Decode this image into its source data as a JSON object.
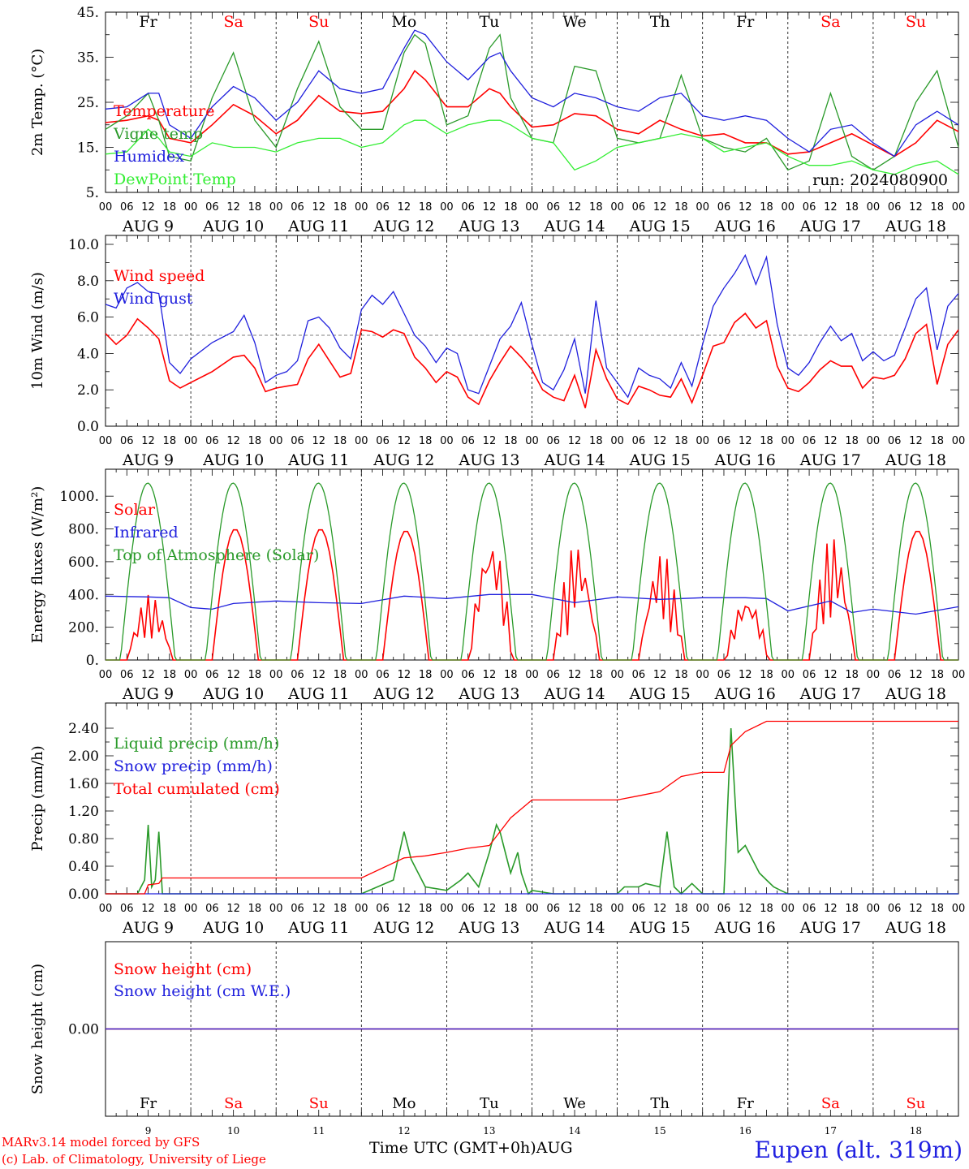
{
  "run_label": "run: 2024080900",
  "month": "AUG",
  "dates": [
    "9",
    "10",
    "11",
    "12",
    "13",
    "14",
    "15",
    "16",
    "17",
    "18"
  ],
  "days": [
    {
      "name": "Fr",
      "color": "#000000"
    },
    {
      "name": "Sa",
      "color": "#ff0000"
    },
    {
      "name": "Su",
      "color": "#ff0000"
    },
    {
      "name": "Mo",
      "color": "#000000"
    },
    {
      "name": "Tu",
      "color": "#000000"
    },
    {
      "name": "We",
      "color": "#000000"
    },
    {
      "name": "Th",
      "color": "#000000"
    },
    {
      "name": "Fr",
      "color": "#000000"
    },
    {
      "name": "Sa",
      "color": "#ff0000"
    },
    {
      "name": "Su",
      "color": "#ff0000"
    }
  ],
  "hour_ticks": [
    "00",
    "06",
    "12",
    "18"
  ],
  "footer": {
    "credit_line1": "MARv3.14 model forced by GFS",
    "credit_line2": "(c) Lab. of Climatology, University of Liege",
    "x_title": "Time UTC (GMT+0h)AUG",
    "station": "Eupen (alt. 319m)"
  },
  "chart_data": [
    {
      "type": "line",
      "ylabel": "2m Temp. (°C)",
      "ylim": [
        5,
        45
      ],
      "yticks": [
        "5.",
        "15.",
        "25.",
        "35.",
        "45."
      ],
      "yticks_values": [
        5,
        15,
        25,
        35,
        45
      ],
      "x_unit": "hours since Aug 9 00 UTC",
      "series": [
        {
          "name": "Temperature",
          "color": "#ff0000",
          "x": [
            0,
            6,
            12,
            15,
            18,
            24,
            30,
            36,
            42,
            48,
            54,
            60,
            66,
            72,
            78,
            84,
            87,
            90,
            96,
            102,
            108,
            111,
            114,
            120,
            126,
            132,
            138,
            144,
            150,
            156,
            162,
            168,
            174,
            180,
            186,
            192,
            198,
            204,
            210,
            216,
            222,
            228,
            234,
            240
          ],
          "y": [
            20.5,
            21,
            22,
            21,
            17,
            16,
            20,
            24.5,
            22,
            18,
            21,
            26.5,
            23,
            22.5,
            23,
            28,
            32,
            30,
            24,
            24,
            28,
            27,
            24,
            19.5,
            20,
            22.5,
            22,
            19,
            18,
            21,
            19,
            17.5,
            18,
            16,
            16,
            13.5,
            14,
            16,
            18,
            15.5,
            13,
            16,
            21,
            18.5
          ]
        },
        {
          "name": "Vigne temp",
          "color": "#2a9a2a",
          "x": [
            0,
            6,
            12,
            15,
            18,
            24,
            30,
            36,
            42,
            48,
            54,
            60,
            66,
            72,
            78,
            84,
            87,
            90,
            96,
            102,
            108,
            111,
            114,
            120,
            126,
            132,
            138,
            144,
            150,
            156,
            162,
            168,
            174,
            180,
            186,
            192,
            198,
            204,
            210,
            216,
            222,
            228,
            234,
            240
          ],
          "y": [
            19,
            22,
            27,
            21,
            13,
            12,
            26,
            36,
            21,
            15,
            28,
            38.5,
            24,
            19,
            19,
            36,
            40,
            38,
            20,
            22,
            37,
            40,
            26,
            17,
            16,
            33,
            32,
            17,
            16,
            17,
            31,
            17,
            15,
            14,
            17,
            10,
            12,
            27,
            13,
            10,
            13,
            25,
            32,
            15
          ]
        },
        {
          "name": "Humidex",
          "color": "#2020dd",
          "x": [
            0,
            6,
            12,
            15,
            18,
            24,
            30,
            36,
            42,
            48,
            54,
            60,
            66,
            72,
            78,
            84,
            87,
            90,
            96,
            102,
            108,
            111,
            114,
            120,
            126,
            132,
            138,
            144,
            150,
            156,
            162,
            168,
            174,
            180,
            186,
            192,
            198,
            204,
            210,
            216,
            222,
            228,
            234,
            240
          ],
          "y": [
            23.5,
            24,
            27,
            27,
            20,
            17,
            24,
            28.5,
            26,
            21,
            25,
            32,
            28,
            27,
            28,
            37,
            41,
            40,
            34,
            30,
            35,
            36,
            32,
            26,
            24,
            27,
            26,
            24,
            23,
            26,
            27,
            22,
            21,
            22,
            21,
            17,
            14,
            19,
            20,
            16,
            13,
            20,
            23,
            20
          ]
        },
        {
          "name": "DewPoint Temp",
          "color": "#33ee33",
          "x": [
            0,
            6,
            12,
            15,
            18,
            24,
            30,
            36,
            42,
            48,
            54,
            60,
            66,
            72,
            78,
            84,
            87,
            90,
            96,
            102,
            108,
            111,
            114,
            120,
            126,
            132,
            138,
            144,
            150,
            156,
            162,
            168,
            174,
            180,
            186,
            192,
            198,
            204,
            210,
            216,
            222,
            228,
            234,
            240
          ],
          "y": [
            13.5,
            14,
            19,
            17,
            14,
            13,
            16,
            15,
            15,
            14,
            16,
            17,
            17,
            15,
            16,
            20,
            21,
            21,
            18,
            20,
            21,
            21,
            20,
            17,
            16,
            10,
            12,
            15,
            16,
            17,
            18,
            17,
            14,
            15,
            16,
            13,
            11,
            11,
            12,
            10,
            9,
            11,
            12,
            9
          ]
        }
      ]
    },
    {
      "type": "line",
      "ylabel": "10m Wind (m/s)",
      "ylim": [
        0,
        10
      ],
      "yticks": [
        "0.0",
        "2.0",
        "4.0",
        "6.0",
        "8.0",
        "10.0"
      ],
      "yticks_values": [
        0,
        2,
        4,
        6,
        8,
        10
      ],
      "reference_line": 5,
      "x_unit": "hours since Aug 9 00 UTC",
      "series": [
        {
          "name": "Wind speed",
          "color": "#ff0000",
          "x": [
            0,
            3,
            6,
            9,
            12,
            15,
            18,
            21,
            24,
            30,
            36,
            39,
            42,
            45,
            48,
            51,
            54,
            57,
            60,
            63,
            66,
            69,
            72,
            75,
            78,
            81,
            84,
            87,
            90,
            93,
            96,
            99,
            102,
            105,
            108,
            111,
            114,
            117,
            120,
            123,
            126,
            129,
            132,
            135,
            138,
            141,
            144,
            147,
            150,
            153,
            156,
            159,
            162,
            165,
            168,
            171,
            174,
            177,
            180,
            183,
            186,
            189,
            192,
            195,
            198,
            201,
            204,
            207,
            210,
            213,
            216,
            219,
            222,
            225,
            228,
            231,
            234,
            237,
            240
          ],
          "y": [
            5.1,
            4.5,
            5,
            5.9,
            5.4,
            4.8,
            2.5,
            2.1,
            2.4,
            3,
            3.8,
            3.9,
            3.2,
            1.9,
            2.1,
            2.2,
            2.3,
            3.7,
            4.5,
            3.6,
            2.7,
            2.9,
            5.3,
            5.2,
            4.9,
            5.3,
            5.1,
            3.8,
            3.2,
            2.4,
            3,
            2.7,
            1.6,
            1.2,
            2.5,
            3.5,
            4.4,
            3.8,
            3.1,
            2,
            1.6,
            1.4,
            2.8,
            1,
            4.2,
            2.6,
            1.5,
            1.2,
            2.2,
            2,
            1.7,
            1.6,
            2.6,
            1.3,
            2.8,
            4.4,
            4.6,
            5.7,
            6.2,
            5.4,
            5.8,
            3.3,
            2.1,
            1.9,
            2.4,
            3.1,
            3.6,
            3.3,
            3.3,
            2.1,
            2.7,
            2.6,
            2.8,
            3.7,
            5.1,
            5.6,
            2.3,
            4.5,
            5.3
          ]
        },
        {
          "name": "Wind gust",
          "color": "#2020dd",
          "x": [
            0,
            3,
            6,
            9,
            12,
            15,
            18,
            21,
            24,
            30,
            36,
            39,
            42,
            45,
            48,
            51,
            54,
            57,
            60,
            63,
            66,
            69,
            72,
            75,
            78,
            81,
            84,
            87,
            90,
            93,
            96,
            99,
            102,
            105,
            108,
            111,
            114,
            117,
            120,
            123,
            126,
            129,
            132,
            135,
            138,
            141,
            144,
            147,
            150,
            153,
            156,
            159,
            162,
            165,
            168,
            171,
            174,
            177,
            180,
            183,
            186,
            189,
            192,
            195,
            198,
            201,
            204,
            207,
            210,
            213,
            216,
            219,
            222,
            225,
            228,
            231,
            234,
            237,
            240
          ],
          "y": [
            6.7,
            6.5,
            7.6,
            7.9,
            7.4,
            7.3,
            3.5,
            2.9,
            3.7,
            4.6,
            5.2,
            6.1,
            4.6,
            2.4,
            2.8,
            3,
            3.6,
            5.8,
            6,
            5.4,
            4.3,
            3.7,
            6.4,
            7.2,
            6.7,
            7.4,
            6.2,
            5,
            4.4,
            3.5,
            4.3,
            4,
            2,
            1.8,
            3.3,
            4.8,
            5.5,
            6.8,
            4.5,
            2.4,
            2,
            3.1,
            4.8,
            1.8,
            6.9,
            3.2,
            2.4,
            1.6,
            3.2,
            2.8,
            2.6,
            2.1,
            3.5,
            2.2,
            4.5,
            6.6,
            7.6,
            8.4,
            9.4,
            7.8,
            9.3,
            5.6,
            3.2,
            2.8,
            3.5,
            4.6,
            5.5,
            4.7,
            5.1,
            3.6,
            4.1,
            3.6,
            3.9,
            5.4,
            7,
            7.6,
            4.2,
            6.6,
            7.3
          ]
        }
      ]
    },
    {
      "type": "line",
      "ylabel": "Energy fluxes (W/m²)",
      "ylim": [
        0,
        1100
      ],
      "yticks": [
        "0.",
        "200.",
        "400.",
        "600.",
        "800.",
        "1000."
      ],
      "yticks_values": [
        0,
        200,
        400,
        600,
        800,
        1000
      ],
      "x_unit": "hours since Aug 9 00 UTC",
      "series": [
        {
          "name": "Solar",
          "color": "#ff0000",
          "peaks": [
            400,
            800,
            800,
            790,
            770,
            720,
            660,
            400,
            760,
            790
          ],
          "noisy_days": [
            0,
            4,
            5,
            6,
            7,
            8
          ]
        },
        {
          "name": "Infrared",
          "color": "#2020dd",
          "x": [
            0,
            12,
            18,
            24,
            30,
            36,
            48,
            60,
            72,
            84,
            96,
            108,
            120,
            132,
            144,
            156,
            168,
            180,
            186,
            192,
            204,
            210,
            216,
            228,
            240
          ],
          "y": [
            390,
            385,
            380,
            320,
            310,
            345,
            360,
            350,
            345,
            390,
            375,
            400,
            400,
            350,
            385,
            370,
            380,
            380,
            375,
            300,
            360,
            290,
            310,
            280,
            325
          ]
        },
        {
          "name": "Top of Atmosphere (Solar)",
          "color": "#2a9a2a",
          "peak": 1080,
          "sunrise_hour": 4.2,
          "sunset_hour": 19.6
        }
      ]
    },
    {
      "type": "line",
      "ylabel": "Precip (mm/h)",
      "ylim": [
        0,
        2.6
      ],
      "yticks": [
        "0.00",
        "0.40",
        "0.80",
        "1.20",
        "1.60",
        "2.00",
        "2.40"
      ],
      "yticks_values": [
        0,
        0.4,
        0.8,
        1.2,
        1.6,
        2.0,
        2.4
      ],
      "x_unit": "hours since Aug 9 00 UTC",
      "series": [
        {
          "name": "Liquid precip (mm/h)",
          "color": "#2a9a2a",
          "x": [
            0,
            9,
            11,
            12,
            13,
            14,
            15,
            16,
            18,
            72,
            81,
            84,
            86,
            90,
            96,
            100,
            102,
            105,
            108,
            110,
            111,
            113,
            114,
            116,
            117,
            119,
            120,
            126,
            144,
            146,
            150,
            152,
            156,
            158,
            160,
            162,
            165,
            168,
            174,
            176,
            178,
            180,
            182,
            184,
            186,
            188,
            190,
            192,
            240
          ],
          "y": [
            0,
            0,
            0.2,
            1.0,
            0.1,
            0.2,
            0.9,
            0,
            0,
            0,
            0.2,
            0.9,
            0.5,
            0.1,
            0.05,
            0.2,
            0.3,
            0.1,
            0.6,
            1.0,
            0.9,
            0.5,
            0.3,
            0.6,
            0.3,
            0,
            0.05,
            0,
            0,
            0.1,
            0.1,
            0.15,
            0.1,
            0.9,
            0.1,
            0,
            0.15,
            0,
            0,
            2.4,
            0.6,
            0.7,
            0.5,
            0.3,
            0.2,
            0.1,
            0.05,
            0,
            0
          ]
        },
        {
          "name": "Snow precip (mm/h)",
          "color": "#2020dd",
          "x": [
            0,
            240
          ],
          "y": [
            0,
            0
          ]
        },
        {
          "name": "Total cumulated (cm)",
          "color": "#ff0000",
          "x": [
            0,
            11,
            12,
            15,
            16,
            72,
            84,
            90,
            96,
            102,
            108,
            114,
            120,
            144,
            150,
            156,
            162,
            168,
            174,
            176,
            180,
            186,
            240
          ],
          "y": [
            0,
            0,
            0.13,
            0.15,
            0.23,
            0.23,
            0.52,
            0.55,
            0.6,
            0.66,
            0.7,
            1.1,
            1.36,
            1.36,
            1.42,
            1.48,
            1.7,
            1.76,
            1.76,
            2.15,
            2.35,
            2.5,
            2.5
          ]
        }
      ]
    },
    {
      "type": "line",
      "ylabel": "Snow height (cm)",
      "ylim": [
        -0.02,
        0.02
      ],
      "yticks": [
        "0.00"
      ],
      "yticks_values": [
        0
      ],
      "x_unit": "hours since Aug 9 00 UTC",
      "series": [
        {
          "name": "Snow height (cm)",
          "color": "#ff0000",
          "x": [
            0,
            240
          ],
          "y": [
            0,
            0
          ]
        },
        {
          "name": "Snow height (cm W.E.)",
          "color": "#2020dd",
          "x": [
            0,
            240
          ],
          "y": [
            0,
            0
          ]
        }
      ]
    }
  ]
}
